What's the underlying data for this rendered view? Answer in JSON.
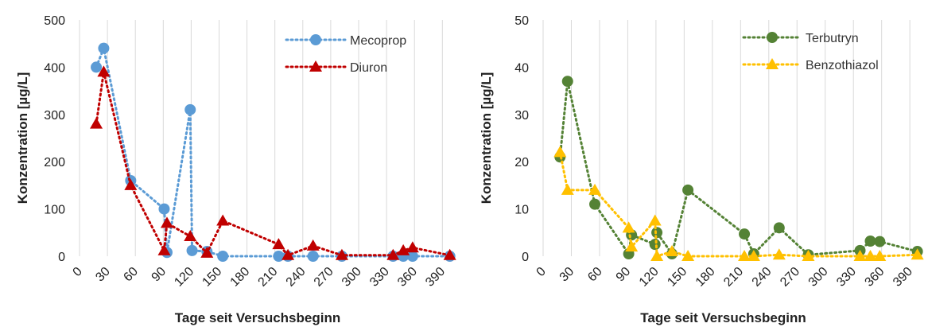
{
  "chart_data": [
    {
      "type": "line",
      "xlabel": "Tage seit Versuchsbeginn",
      "ylabel": "Konzentration [µg/L]",
      "xlim": [
        0,
        400
      ],
      "ylim": [
        0,
        500
      ],
      "xticks": [
        "0",
        "30",
        "60",
        "90",
        "120",
        "150",
        "180",
        "210",
        "240",
        "270",
        "300",
        "330",
        "360",
        "390"
      ],
      "yticks": [
        "0",
        "100",
        "200",
        "300",
        "400",
        "500"
      ],
      "grid": "vertical",
      "legend": "top-right",
      "series": [
        {
          "name": "Mecoprop",
          "color": "#5b9bd5",
          "marker": "circle",
          "x": [
            18,
            26,
            55,
            91,
            94,
            119,
            121,
            137,
            154,
            214,
            224,
            251,
            282,
            337,
            348,
            358,
            398
          ],
          "y": [
            400,
            440,
            160,
            100,
            8,
            310,
            12,
            10,
            0,
            0,
            0,
            0,
            0,
            0,
            0,
            0,
            0
          ]
        },
        {
          "name": "Diuron",
          "color": "#c00000",
          "marker": "triangle",
          "x": [
            18,
            26,
            55,
            91,
            94,
            119,
            137,
            154,
            214,
            224,
            251,
            282,
            337,
            348,
            358,
            398
          ],
          "y": [
            280,
            390,
            150,
            12,
            70,
            42,
            7,
            75,
            25,
            2,
            22,
            2,
            2,
            12,
            18,
            2
          ]
        }
      ]
    },
    {
      "type": "line",
      "xlabel": "Tage seit Versuchsbeginn",
      "ylabel": "Konzentration [µg/L]",
      "xlim": [
        0,
        400
      ],
      "ylim": [
        0,
        50
      ],
      "xticks": [
        "0",
        "30",
        "60",
        "90",
        "120",
        "150",
        "180",
        "210",
        "240",
        "270",
        "300",
        "330",
        "360",
        "390"
      ],
      "yticks": [
        "0",
        "10",
        "20",
        "30",
        "40",
        "50"
      ],
      "grid": "vertical",
      "legend": "top-right",
      "series": [
        {
          "name": "Terbutryn",
          "color": "#548235",
          "marker": "circle",
          "x": [
            18,
            26,
            55,
            91,
            94,
            119,
            121,
            137,
            154,
            214,
            224,
            251,
            282,
            337,
            348,
            358,
            398
          ],
          "y": [
            21,
            37,
            11,
            0.5,
            4.5,
            2.5,
            5,
            0.5,
            14,
            4.7,
            0.5,
            6,
            0.3,
            1.2,
            3.2,
            3.1,
            1
          ]
        },
        {
          "name": "Benzothiazol",
          "color": "#ffc000",
          "marker": "triangle",
          "x": [
            18,
            26,
            55,
            91,
            94,
            119,
            121,
            137,
            154,
            214,
            224,
            251,
            282,
            337,
            348,
            358,
            398
          ],
          "y": [
            22,
            14,
            14,
            6,
            2,
            7.5,
            0,
            1,
            0,
            0,
            0,
            0.3,
            0,
            0,
            0,
            0,
            0.3
          ]
        }
      ]
    }
  ]
}
